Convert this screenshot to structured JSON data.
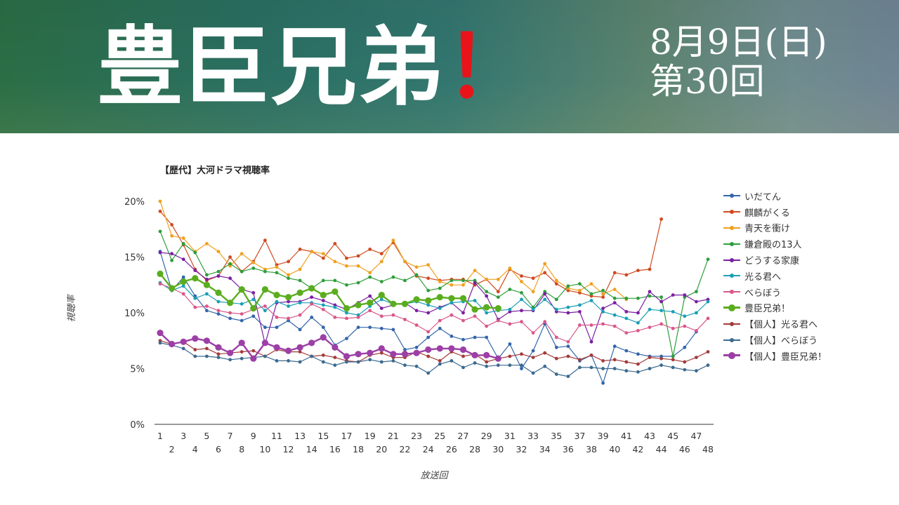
{
  "header": {
    "title": "豊臣兄弟",
    "title_mark": "！",
    "date_line1": "8月9日(日)",
    "date_line2": "第30回"
  },
  "chart_data": {
    "type": "line",
    "title": "【歴代】大河ドラマ視聴率",
    "xlabel": "放送回",
    "ylabel": "視聴率",
    "ylim": [
      0,
      20
    ],
    "yticks": [
      "0%",
      "5%",
      "10%",
      "15%",
      "20%"
    ],
    "grid": false,
    "legend_position": "right",
    "x": [
      1,
      2,
      3,
      4,
      5,
      6,
      7,
      8,
      9,
      10,
      11,
      12,
      13,
      14,
      15,
      16,
      17,
      18,
      19,
      20,
      21,
      22,
      23,
      24,
      25,
      26,
      27,
      28,
      29,
      30,
      31,
      32,
      33,
      34,
      35,
      36,
      37,
      38,
      39,
      40,
      41,
      42,
      43,
      44,
      45,
      46,
      47,
      48
    ],
    "series": [
      {
        "name": "いだてん",
        "color": "#3366aa",
        "emphasis": false,
        "values": [
          15.5,
          12.0,
          13.2,
          11.5,
          10.2,
          9.9,
          9.5,
          9.3,
          9.7,
          8.7,
          8.7,
          9.3,
          8.5,
          9.6,
          8.7,
          7.1,
          7.7,
          8.7,
          8.7,
          8.6,
          8.5,
          6.7,
          6.9,
          7.8,
          8.6,
          7.9,
          7.6,
          7.8,
          7.8,
          5.9,
          7.2,
          5.0,
          6.6,
          9.0,
          6.9,
          7.0,
          5.7,
          6.2,
          3.7,
          7.0,
          6.6,
          6.3,
          6.1,
          6.1,
          6.1,
          6.9,
          8.3,
          null
        ]
      },
      {
        "name": "麒麟がくる",
        "color": "#d04a20",
        "emphasis": false,
        "values": [
          19.1,
          17.9,
          16.1,
          13.9,
          12.9,
          13.3,
          15.0,
          13.7,
          14.6,
          16.5,
          14.3,
          14.6,
          15.7,
          15.5,
          14.9,
          16.2,
          14.9,
          15.1,
          15.7,
          15.3,
          16.3,
          14.6,
          13.3,
          13.1,
          12.9,
          13.0,
          13.0,
          12.5,
          13.0,
          11.9,
          13.9,
          13.3,
          13.1,
          13.6,
          12.6,
          12.0,
          11.8,
          11.5,
          11.4,
          13.6,
          13.4,
          13.8,
          13.9,
          18.4,
          null,
          null,
          null,
          null
        ]
      },
      {
        "name": "青天を衝け",
        "color": "#f0a020",
        "emphasis": false,
        "values": [
          20.0,
          16.9,
          16.7,
          15.5,
          16.2,
          15.5,
          14.2,
          15.3,
          14.5,
          13.9,
          14.1,
          13.4,
          13.9,
          15.5,
          15.3,
          14.6,
          14.2,
          14.2,
          13.6,
          14.6,
          16.5,
          14.6,
          14.1,
          14.3,
          12.8,
          12.5,
          12.5,
          13.8,
          13.0,
          13.0,
          14.0,
          12.8,
          11.9,
          14.4,
          12.9,
          12.2,
          12.0,
          12.6,
          11.7,
          12.1,
          11.2,
          null,
          null,
          null,
          null,
          null,
          null,
          null
        ]
      },
      {
        "name": "鎌倉殿の13人",
        "color": "#2e9e3a",
        "emphasis": false,
        "values": [
          17.3,
          14.7,
          16.2,
          15.4,
          13.4,
          13.7,
          14.4,
          13.7,
          14.0,
          13.7,
          13.6,
          13.1,
          12.9,
          12.2,
          12.9,
          12.9,
          12.5,
          12.7,
          13.2,
          12.8,
          13.2,
          12.9,
          13.4,
          12.0,
          12.2,
          12.9,
          12.9,
          12.9,
          11.9,
          11.4,
          12.1,
          11.8,
          10.5,
          11.9,
          11.2,
          12.4,
          12.6,
          11.7,
          12.0,
          11.3,
          11.3,
          11.3,
          11.5,
          11.4,
          6.1,
          11.4,
          11.9,
          14.8
        ]
      },
      {
        "name": "どうする家康",
        "color": "#7b1fa2",
        "emphasis": false,
        "values": [
          15.4,
          15.3,
          14.8,
          13.8,
          13.0,
          13.3,
          13.1,
          12.1,
          11.8,
          7.2,
          10.9,
          11.0,
          11.0,
          11.4,
          11.1,
          10.7,
          10.3,
          10.9,
          11.5,
          10.4,
          10.7,
          10.9,
          10.2,
          10.0,
          10.5,
          10.9,
          10.0,
          12.7,
          11.5,
          9.4,
          10.1,
          10.2,
          10.2,
          11.7,
          10.1,
          10.0,
          10.1,
          7.4,
          10.4,
          10.9,
          10.1,
          10.0,
          11.9,
          11.0,
          11.6,
          11.6,
          11.0,
          11.2
        ]
      },
      {
        "name": "光る君へ",
        "color": "#1a9fb5",
        "emphasis": false,
        "values": [
          12.7,
          12.0,
          12.4,
          11.3,
          11.7,
          11.0,
          10.9,
          10.8,
          11.2,
          10.2,
          11.0,
          10.6,
          10.9,
          10.9,
          10.7,
          10.5,
          10.0,
          9.8,
          10.6,
          11.2,
          10.8,
          10.8,
          11.0,
          10.7,
          10.4,
          10.9,
          11.0,
          11.1,
          10.0,
          10.2,
          10.3,
          11.2,
          10.3,
          11.2,
          10.3,
          10.5,
          10.7,
          11.1,
          10.1,
          9.8,
          9.5,
          9.1,
          10.3,
          10.2,
          10.1,
          9.7,
          10.0,
          11.0
        ]
      },
      {
        "name": "べらぼう",
        "color": "#d9578a",
        "emphasis": false,
        "values": [
          12.6,
          12.2,
          11.7,
          10.5,
          10.6,
          10.2,
          10.0,
          9.9,
          10.3,
          10.6,
          9.6,
          9.5,
          9.8,
          10.8,
          10.3,
          9.6,
          9.5,
          9.6,
          10.2,
          9.7,
          9.8,
          9.4,
          8.9,
          8.3,
          9.3,
          9.8,
          9.3,
          9.7,
          8.8,
          9.3,
          9.0,
          9.2,
          8.2,
          9.2,
          7.8,
          7.4,
          8.9,
          8.9,
          9.0,
          8.8,
          8.2,
          8.4,
          8.7,
          9.0,
          8.6,
          8.8,
          8.4,
          9.5
        ]
      },
      {
        "name": "豊臣兄弟！",
        "color": "#5aad1e",
        "emphasis": true,
        "values": [
          13.5,
          12.2,
          12.8,
          13.1,
          12.5,
          11.8,
          10.9,
          12.1,
          10.4,
          12.1,
          11.6,
          11.4,
          11.8,
          12.2,
          11.6,
          11.9,
          10.4,
          10.7,
          10.9,
          11.6,
          10.8,
          10.8,
          11.2,
          11.1,
          11.4,
          11.3,
          11.3,
          10.3,
          10.5,
          10.4,
          null,
          null,
          null,
          null,
          null,
          null,
          null,
          null,
          null,
          null,
          null,
          null,
          null,
          null,
          null,
          null,
          null,
          null
        ]
      },
      {
        "name": "【個人】光る君へ",
        "color": "#a33a3a",
        "emphasis": false,
        "values": [
          7.5,
          7.2,
          7.4,
          6.7,
          6.8,
          6.3,
          6.4,
          6.5,
          6.6,
          6.1,
          6.7,
          6.5,
          6.5,
          6.1,
          6.2,
          6.0,
          5.7,
          5.6,
          6.2,
          6.4,
          6.0,
          6.0,
          6.5,
          6.1,
          5.7,
          6.5,
          6.1,
          6.3,
          5.6,
          5.9,
          6.1,
          6.3,
          6.0,
          6.4,
          5.9,
          6.1,
          5.8,
          6.2,
          5.7,
          5.8,
          5.6,
          5.4,
          6.0,
          5.9,
          5.8,
          5.6,
          6.0,
          6.5
        ]
      },
      {
        "name": "【個人】べらぼう",
        "color": "#3b6a8f",
        "emphasis": false,
        "values": [
          7.3,
          7.1,
          6.8,
          6.1,
          6.1,
          6.0,
          5.8,
          5.9,
          6.0,
          6.1,
          5.7,
          5.7,
          5.6,
          6.1,
          5.6,
          5.3,
          5.6,
          5.6,
          5.8,
          5.6,
          5.7,
          5.3,
          5.2,
          4.6,
          5.4,
          5.7,
          5.1,
          5.5,
          5.2,
          5.3,
          5.3,
          5.3,
          4.6,
          5.2,
          4.5,
          4.3,
          5.1,
          5.1,
          5.0,
          5.0,
          4.8,
          4.7,
          5.0,
          5.3,
          5.1,
          4.9,
          4.8,
          5.3
        ]
      },
      {
        "name": "【個人】豊臣兄弟！",
        "color": "#9c3fa6",
        "emphasis": true,
        "values": [
          8.2,
          7.2,
          7.4,
          7.7,
          7.5,
          6.9,
          6.4,
          7.3,
          5.9,
          7.3,
          6.9,
          6.6,
          6.9,
          7.3,
          7.8,
          6.9,
          6.1,
          6.3,
          6.4,
          6.8,
          6.3,
          6.3,
          6.4,
          6.7,
          6.8,
          6.8,
          6.7,
          6.2,
          6.2,
          5.9,
          null,
          null,
          null,
          null,
          null,
          null,
          null,
          null,
          null,
          null,
          null,
          null,
          null,
          null,
          null,
          null,
          null,
          null
        ]
      }
    ]
  }
}
